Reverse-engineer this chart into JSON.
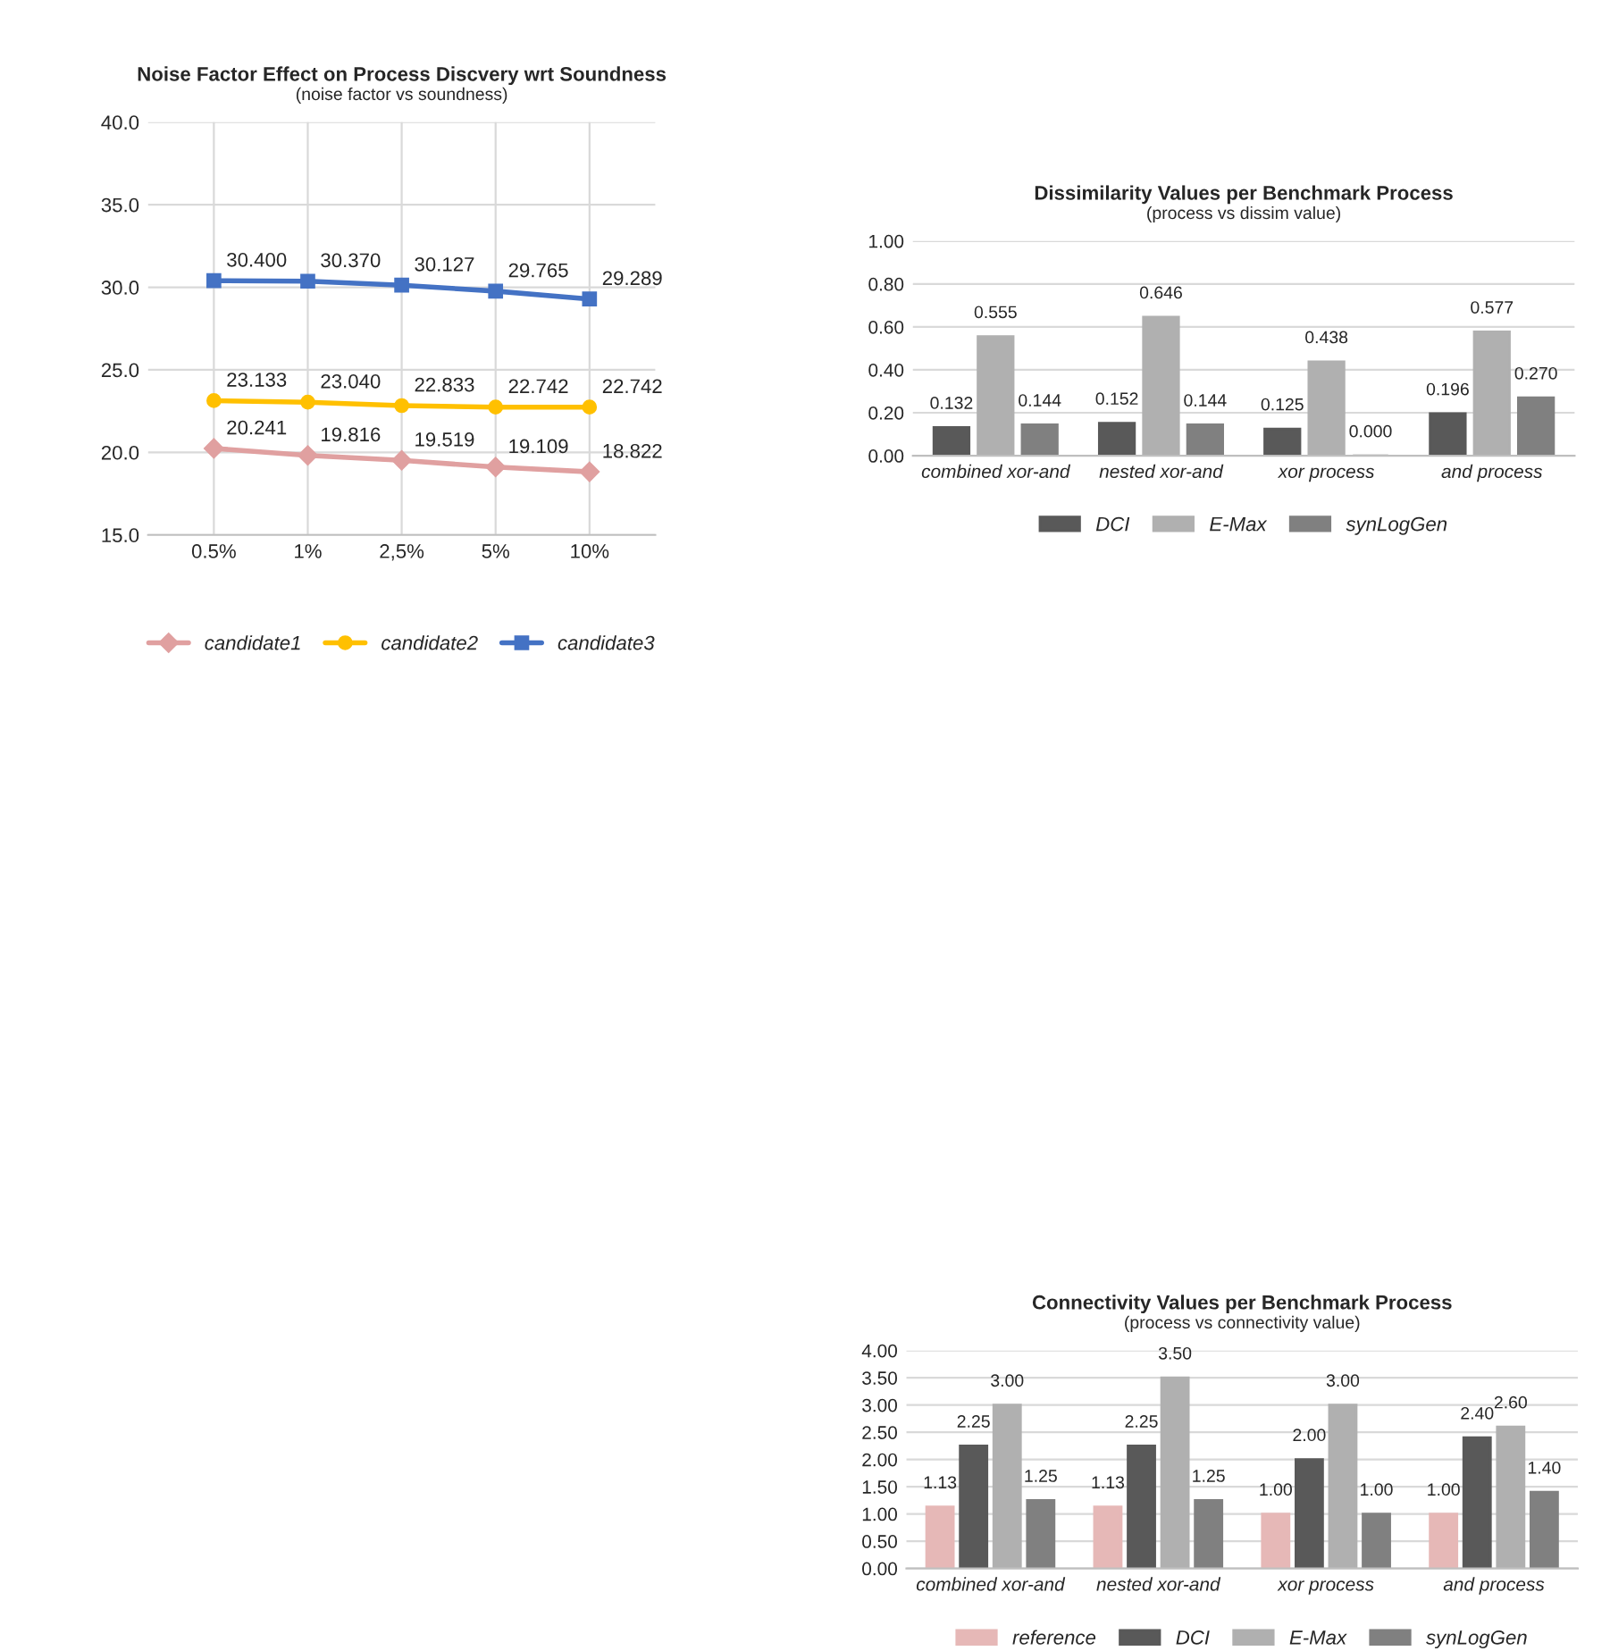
{
  "chart_data": [
    {
      "type": "line",
      "title": "Noise Factor Effect on Process Discvery wrt Soundness",
      "subtitle": "(noise factor vs soundness)",
      "categories": [
        "0.5%",
        "1%",
        "2,5%",
        "5%",
        "10%"
      ],
      "series": [
        {
          "name": "candidate1",
          "color": "#e0a0a0",
          "marker": "diamond",
          "values": [
            20.241,
            19.816,
            19.519,
            19.109,
            18.822
          ],
          "value_labels": [
            "20.241",
            "19.816",
            "19.519",
            "19.109",
            "18.822"
          ]
        },
        {
          "name": "candidate2",
          "color": "#ffc000",
          "marker": "circle",
          "values": [
            23.133,
            23.04,
            22.833,
            22.742,
            22.742
          ],
          "value_labels": [
            "23.133",
            "23.040",
            "22.833",
            "22.742",
            "22.742"
          ]
        },
        {
          "name": "candidate3",
          "color": "#4472c4",
          "marker": "square",
          "values": [
            30.4,
            30.37,
            30.127,
            29.765,
            29.289
          ],
          "value_labels": [
            "30.400",
            "30.370",
            "30.127",
            "29.765",
            "29.289"
          ]
        }
      ],
      "ylim": [
        15,
        40
      ],
      "yticks": [
        {
          "value": 15,
          "label": "15.0"
        },
        {
          "value": 20,
          "label": "20.0"
        },
        {
          "value": 25,
          "label": "25.0"
        },
        {
          "value": 30,
          "label": "30.0"
        },
        {
          "value": 35,
          "label": "35.0"
        },
        {
          "value": 40,
          "label": "40.0"
        }
      ],
      "grid": true,
      "legend": "bottom",
      "line_style": "solid"
    },
    {
      "type": "bar",
      "title": "Dissimilarity Values per Benchmark Process",
      "subtitle": "(process vs dissim value)",
      "categories": [
        "combined xor-and",
        "nested xor-and",
        "xor process",
        "and process"
      ],
      "series": [
        {
          "name": "DCI",
          "color": "#595959",
          "values": [
            0.132,
            0.152,
            0.125,
            0.196
          ],
          "value_labels": [
            "0.132",
            "0.152",
            "0.125",
            "0.196"
          ]
        },
        {
          "name": "E-Max",
          "color": "#b0b0b0",
          "values": [
            0.555,
            0.646,
            0.438,
            0.577
          ],
          "value_labels": [
            "0.555",
            "0.646",
            "0.438",
            "0.577"
          ]
        },
        {
          "name": "synLogGen",
          "color": "#808080",
          "values": [
            0.144,
            0.144,
            0.0,
            0.27
          ],
          "value_labels": [
            "0.144",
            "0.144",
            "0.000",
            "0.270"
          ]
        }
      ],
      "ylim": [
        0,
        1
      ],
      "yticks": [
        {
          "value": 0,
          "label": "0.00"
        },
        {
          "value": 0.2,
          "label": "0.20"
        },
        {
          "value": 0.4,
          "label": "0.40"
        },
        {
          "value": 0.6,
          "label": "0.60"
        },
        {
          "value": 0.8,
          "label": "0.80"
        },
        {
          "value": 1,
          "label": "1.00"
        }
      ],
      "grid": "y",
      "legend": "bottom"
    },
    {
      "type": "bar",
      "title": "Connectivity Values per Benchmark Process",
      "subtitle": "(process vs connectivity value)",
      "categories": [
        "combined xor-and",
        "nested xor-and",
        "xor process",
        "and process"
      ],
      "series": [
        {
          "name": "reference",
          "color": "#e6b8b7",
          "values": [
            1.13,
            1.13,
            1.0,
            1.0
          ],
          "value_labels": [
            "1.13",
            "1.13",
            "1.00",
            "1.00"
          ]
        },
        {
          "name": "DCI",
          "color": "#595959",
          "values": [
            2.25,
            2.25,
            2.0,
            2.4
          ],
          "value_labels": [
            "2.25",
            "2.25",
            "2.00",
            "2.40"
          ]
        },
        {
          "name": "E-Max",
          "color": "#b0b0b0",
          "values": [
            3.0,
            3.5,
            3.0,
            2.6
          ],
          "value_labels": [
            "3.00",
            "3.50",
            "3.00",
            "2.60"
          ]
        },
        {
          "name": "synLogGen",
          "color": "#808080",
          "values": [
            1.25,
            1.25,
            1.0,
            1.4
          ],
          "value_labels": [
            "1.25",
            "1.25",
            "1.00",
            "1.40"
          ]
        }
      ],
      "ylim": [
        0,
        4
      ],
      "yticks": [
        {
          "value": 0,
          "label": "0.00"
        },
        {
          "value": 0.5,
          "label": "0.50"
        },
        {
          "value": 1,
          "label": "1.00"
        },
        {
          "value": 1.5,
          "label": "1.50"
        },
        {
          "value": 2,
          "label": "2.00"
        },
        {
          "value": 2.5,
          "label": "2.50"
        },
        {
          "value": 3,
          "label": "3.00"
        },
        {
          "value": 3.5,
          "label": "3.50"
        },
        {
          "value": 4,
          "label": "4.00"
        }
      ],
      "grid": "y",
      "legend": "bottom"
    }
  ]
}
